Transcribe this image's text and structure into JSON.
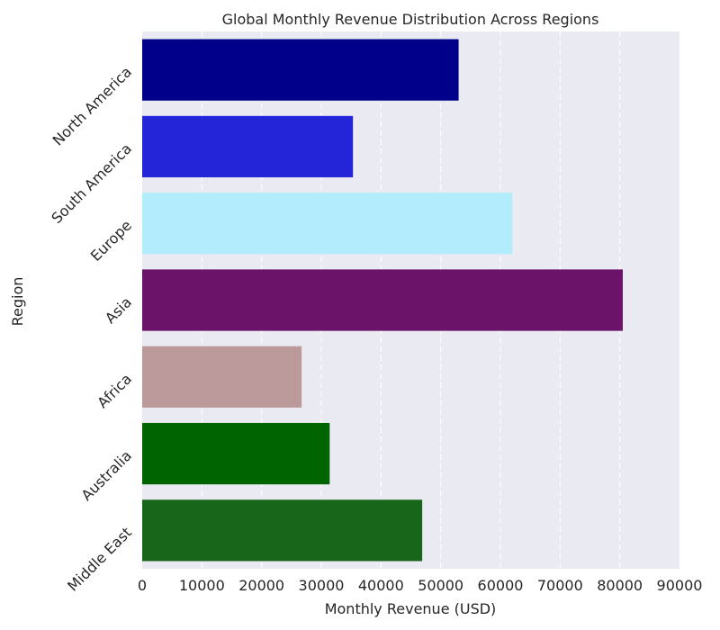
{
  "chart_data": {
    "type": "bar",
    "orientation": "horizontal",
    "title": "Global Monthly Revenue Distribution Across Regions",
    "xlabel": "Monthly Revenue (USD)",
    "ylabel": "Region",
    "xlim": [
      0,
      90000
    ],
    "xticks": [
      "0",
      "10000",
      "20000",
      "30000",
      "40000",
      "50000",
      "60000",
      "70000",
      "80000",
      "90000"
    ],
    "grid": "vertical dashed",
    "categories": [
      "North America",
      "South America",
      "Europe",
      "Asia",
      "Africa",
      "Australia",
      "Middle East"
    ],
    "values": [
      53000,
      35300,
      62000,
      80500,
      26700,
      31400,
      46900
    ],
    "colors": [
      "#00008b",
      "#2424d8",
      "#b3ecfc",
      "#6b1368",
      "#bc9a9c",
      "#006400",
      "#17661a"
    ]
  }
}
